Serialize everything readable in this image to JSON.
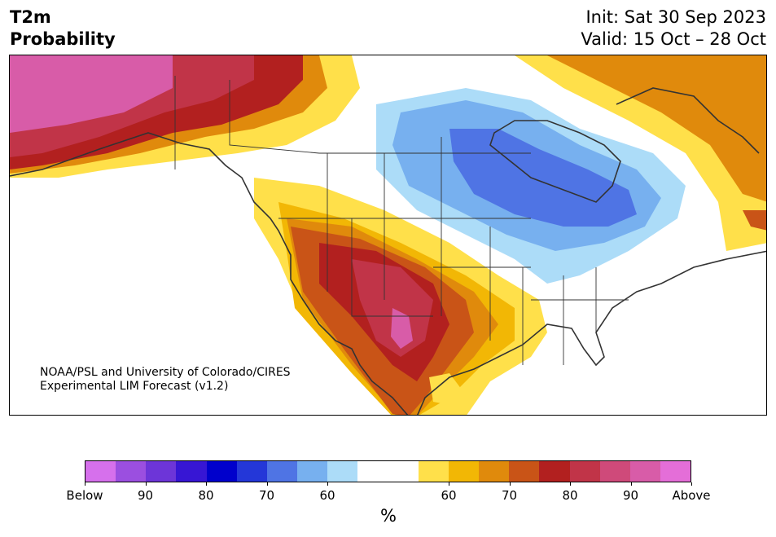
{
  "header": {
    "title_line1": "T2m",
    "title_line2": "Probability",
    "init": "Init: Sat 30 Sep 2023",
    "valid": "Valid: 15 Oct – 28 Oct"
  },
  "credit": {
    "line1": "NOAA/PSL and University of Colorado/CIRES",
    "line2": "Experimental LIM Forecast (v1.2)"
  },
  "colorbar": {
    "unit": "%",
    "tick_labels": [
      "Below",
      "90",
      "80",
      "70",
      "60",
      "60",
      "70",
      "80",
      "90",
      "Above"
    ],
    "colors": [
      "#d670ec",
      "#9b4fe0",
      "#6d35d8",
      "#3716d4",
      "#0000cc",
      "#2437d8",
      "#4f74e4",
      "#77b0ef",
      "#acdcf8",
      "#ffffff",
      "#ffffff",
      "#ffe04a",
      "#f2b705",
      "#e08a0c",
      "#c95417",
      "#b2201f",
      "#c13448",
      "#cf4a7a",
      "#d85ca8",
      "#e46ed8"
    ]
  },
  "legend_colors": {
    "below_strong": "#d670ec",
    "below_60": "#acdcf8",
    "below_70": "#77b0ef",
    "below_80": "#4f74e4",
    "above_60": "#ffe04a",
    "above_70": "#e08a0c",
    "above_80": "#b2201f",
    "above_90": "#d85ca8"
  }
}
